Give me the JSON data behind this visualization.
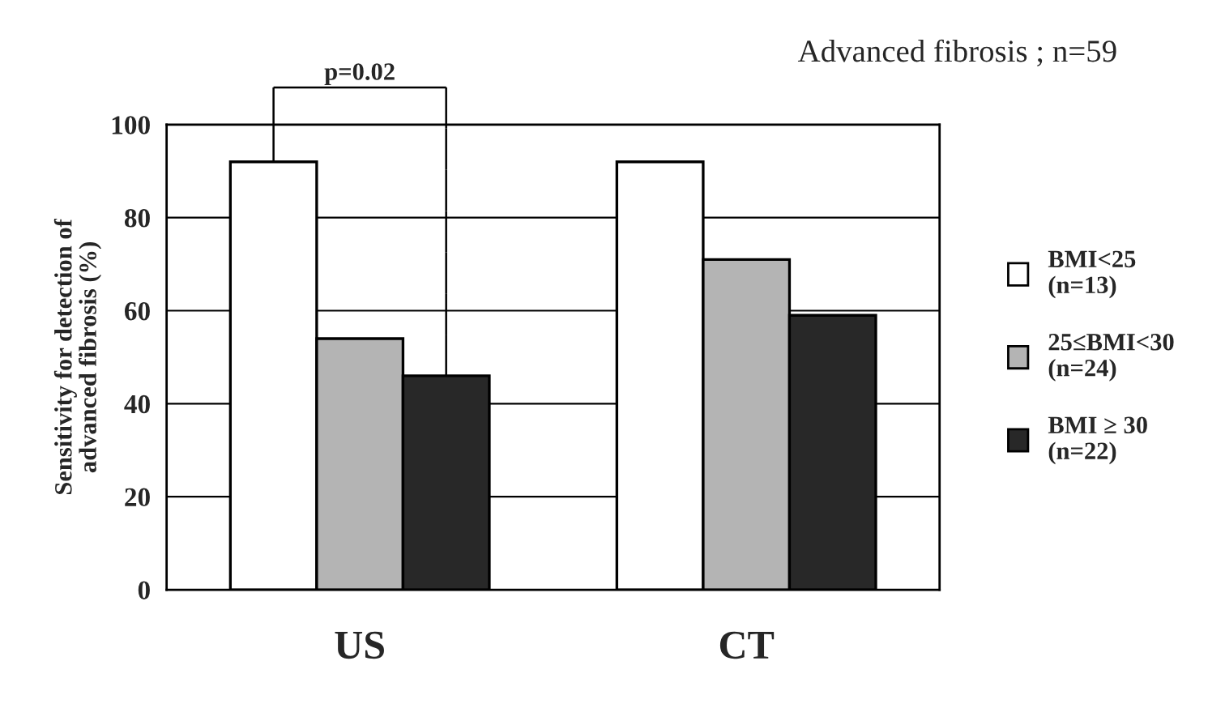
{
  "chart_data": {
    "type": "bar",
    "title": "Advanced fibrosis ; n=59",
    "ylabel": "Sensitivity for detection of\nadvanced fibrosis (%)",
    "categories": [
      "US",
      "CT"
    ],
    "series": [
      {
        "name": "BMI<25\n(n=13)",
        "color": "#ffffff",
        "values": [
          92,
          92
        ]
      },
      {
        "name": "25≤BMI<30\n(n=24)",
        "color": "#b4b4b4",
        "values": [
          54,
          71
        ]
      },
      {
        "name": "BMI ≥ 30\n(n=22)",
        "color": "#282828",
        "values": [
          46,
          59
        ]
      }
    ],
    "ylim": [
      0,
      100
    ],
    "yticks": [
      0,
      20,
      40,
      60,
      80,
      100
    ],
    "grid": "y",
    "legend": "right",
    "annotations": [
      "p=0.02"
    ]
  }
}
